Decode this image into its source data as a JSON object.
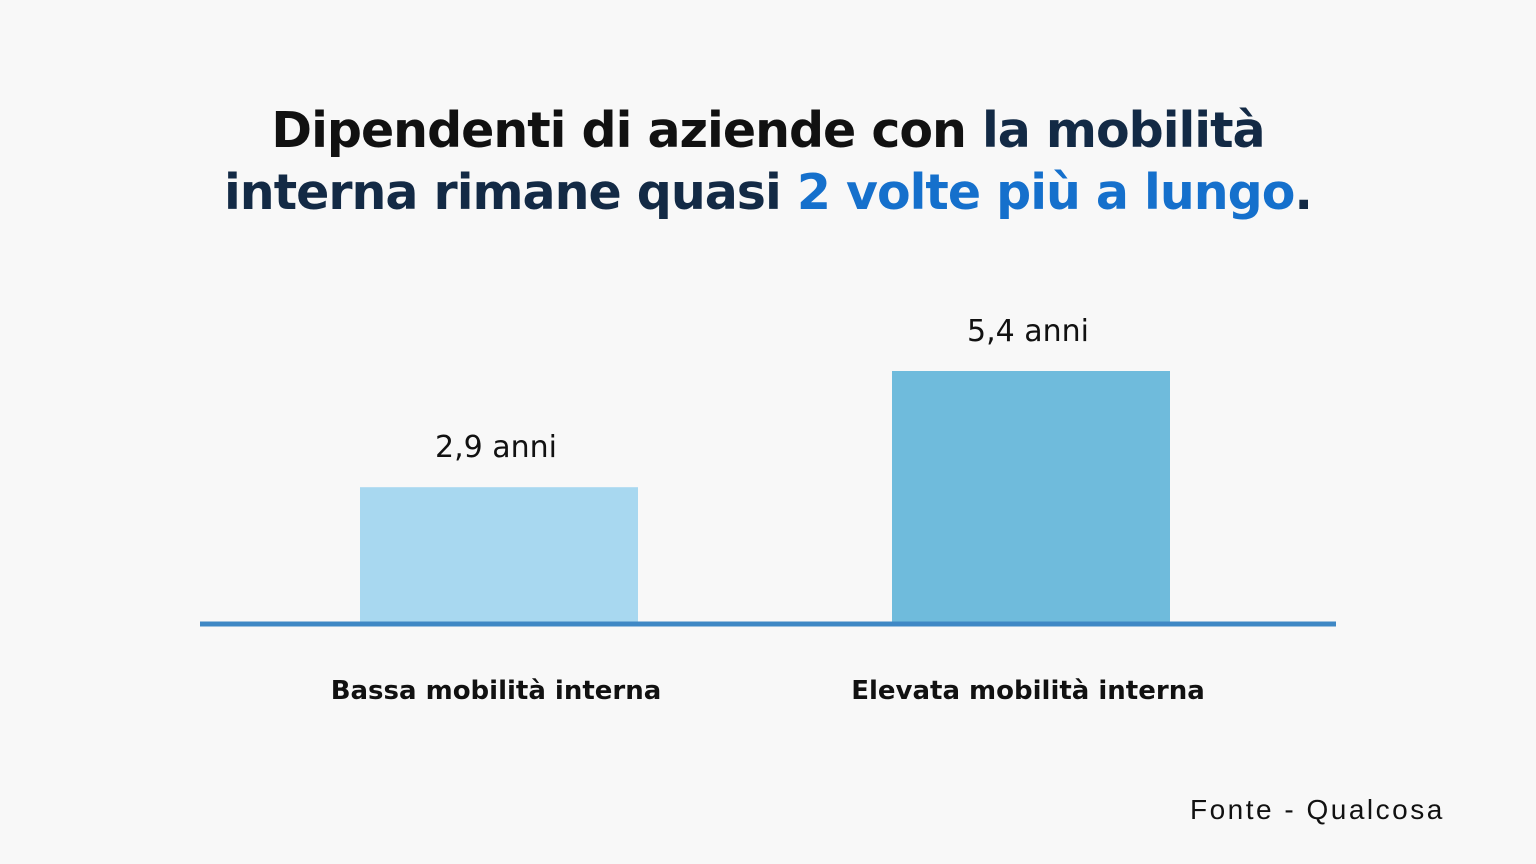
{
  "title": {
    "part1": "Dipendenti di aziende con ",
    "part2": "la mobilità",
    "part3": "interna rimane quasi ",
    "highlight": "2 volte più a lungo",
    "end": "."
  },
  "chart_data": {
    "type": "bar",
    "categories": [
      "Bassa mobilità interna",
      "Elevata mobilità interna"
    ],
    "values": [
      2.9,
      5.4
    ],
    "data_labels": [
      "2,9 anni",
      "5,4 anni"
    ],
    "unit": "anni",
    "colors": [
      "#a8d8f0",
      "#6fbbdc"
    ],
    "axis_color": "#3f88c5",
    "ylim": [
      0,
      5.4
    ],
    "grid": false
  },
  "source": "Fonte - Qualcosa"
}
